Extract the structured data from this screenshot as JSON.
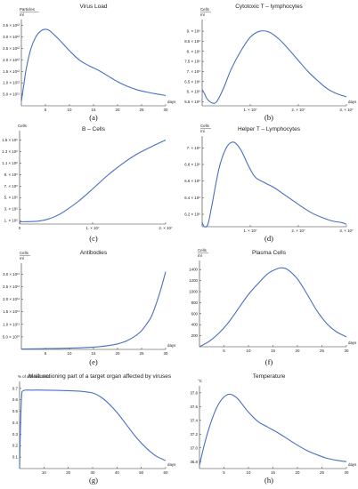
{
  "line_color": "#4a6fc0",
  "chart_data": [
    {
      "type": "line",
      "panel_label": "(a)",
      "title": "Virus Load",
      "ylabel": "Particles / ml",
      "xlabel": "days",
      "xlim": [
        0,
        30
      ],
      "ylim": [
        0,
        3600000000000.0
      ],
      "x_ticks": [
        {
          "v": 5,
          "t": "5"
        },
        {
          "v": 10,
          "t": "10"
        },
        {
          "v": 15,
          "t": "15"
        },
        {
          "v": 20,
          "t": "20"
        },
        {
          "v": 25,
          "t": "25"
        },
        {
          "v": 30,
          "t": "30"
        }
      ],
      "y_ticks": [
        {
          "v": 500000000000.0,
          "t": "5.0 × 10¹¹"
        },
        {
          "v": 1000000000000.0,
          "t": "1.0 × 10¹²"
        },
        {
          "v": 1500000000000.0,
          "t": "1.5 × 10¹²"
        },
        {
          "v": 2000000000000.0,
          "t": "2.0 × 10¹²"
        },
        {
          "v": 2500000000000.0,
          "t": "2.5 × 10¹²"
        },
        {
          "v": 3000000000000.0,
          "t": "3.0 × 10¹²"
        },
        {
          "v": 3500000000000.0,
          "t": "3.5 × 10¹²"
        }
      ],
      "series": [
        {
          "x": [
            0,
            0.5,
            1,
            2,
            3,
            4,
            5,
            6,
            8,
            10,
            12,
            14,
            16,
            18,
            20,
            22,
            24,
            26,
            28,
            30
          ],
          "y": [
            200000000000.0,
            900000000000.0,
            1600000000000.0,
            2500000000000.0,
            3000000000000.0,
            3250000000000.0,
            3330000000000.0,
            3250000000000.0,
            2850000000000.0,
            2400000000000.0,
            2000000000000.0,
            1750000000000.0,
            1550000000000.0,
            1300000000000.0,
            1050000000000.0,
            850000000000.0,
            700000000000.0,
            600000000000.0,
            520000000000.0,
            450000000000.0
          ]
        }
      ]
    },
    {
      "type": "line",
      "panel_label": "(b)",
      "title": "Cytotoxic T – lymphocytes",
      "ylabel": "Cells / ml",
      "xlabel": "days",
      "xlim": [
        0,
        30000000
      ],
      "ylim": [
        5300000.0,
        9400000.0
      ],
      "x_ticks": [
        {
          "v": 10000000,
          "t": "1. × 10⁷"
        },
        {
          "v": 20000000,
          "t": "2. × 10⁷"
        },
        {
          "v": 30000000,
          "t": "3. × 10⁷"
        }
      ],
      "y_ticks": [
        {
          "v": 5500000.0,
          "t": "5.5 × 10⁶"
        },
        {
          "v": 6000000.0,
          "t": "6. × 10⁶"
        },
        {
          "v": 6500000.0,
          "t": "6.5 × 10⁶"
        },
        {
          "v": 7000000.0,
          "t": "7. × 10⁶"
        },
        {
          "v": 7500000.0,
          "t": "7.5 × 10⁶"
        },
        {
          "v": 8000000.0,
          "t": "8. × 10⁶"
        },
        {
          "v": 8500000.0,
          "t": "8.5 × 10⁶"
        },
        {
          "v": 9000000.0,
          "t": "9. × 10⁶"
        }
      ],
      "series": [
        {
          "x": [
            0,
            500000,
            1000000,
            2000000,
            3000000,
            4500000,
            6000000,
            8000000,
            10000000,
            12000000,
            14000000,
            16000000,
            18000000,
            20000000,
            22000000,
            24000000,
            26000000,
            28000000,
            30000000
          ],
          "y": [
            6100000.0,
            5900000.0,
            5650000.0,
            5450000.0,
            5500000.0,
            6200000.0,
            7100000.0,
            8000000.0,
            8700000.0,
            9000000.0,
            8950000.0,
            8600000.0,
            8100000.0,
            7550000.0,
            7000000.0,
            6550000.0,
            6150000.0,
            5900000.0,
            5750000.0
          ]
        }
      ]
    },
    {
      "type": "line",
      "panel_label": "(c)",
      "title": "B – Cells",
      "ylabel": "Cells",
      "xlabel": "",
      "xlim": [
        0,
        20000000
      ],
      "ylim": [
        40000.0,
        1600000.0
      ],
      "x_ticks": [
        {
          "v": 0,
          "t": "0"
        },
        {
          "v": 10000000,
          "t": "1. × 10⁷"
        },
        {
          "v": 20000000,
          "t": "2. × 10⁷"
        }
      ],
      "y_ticks": [
        {
          "v": 100000.0,
          "t": "1. × 10⁵"
        },
        {
          "v": 300000.0,
          "t": "3. × 10⁵"
        },
        {
          "v": 500000.0,
          "t": "5. × 10⁵"
        },
        {
          "v": 700000.0,
          "t": "7. × 10⁵"
        },
        {
          "v": 900000.0,
          "t": "9. × 10⁵"
        },
        {
          "v": 1100000.0,
          "t": "1.1 × 10⁶"
        },
        {
          "v": 1300000.0,
          "t": "1.3 × 10⁶"
        },
        {
          "v": 1500000.0,
          "t": "1.5 × 10⁶"
        }
      ],
      "series": [
        {
          "x": [
            0,
            2000000,
            3000000,
            4000000,
            5000000,
            6000000,
            8000000,
            10000000,
            12000000,
            14000000,
            16000000,
            18000000,
            20000000
          ],
          "y": [
            80000.0,
            85000.0,
            100000.0,
            130000.0,
            180000.0,
            250000.0,
            430000.0,
            650000.0,
            880000.0,
            1080000.0,
            1250000.0,
            1380000.0,
            1500000.0
          ]
        }
      ]
    },
    {
      "type": "line",
      "panel_label": "(d)",
      "title": "Helper T – Lymphocytes",
      "ylabel": "Cells / ml",
      "xlabel": "",
      "xlim": [
        0,
        30000000
      ],
      "ylim": [
        6050000.0,
        7100000.0
      ],
      "x_ticks": [
        {
          "v": 10000000,
          "t": "1. × 10⁷"
        },
        {
          "v": 20000000,
          "t": "2. × 10⁷"
        },
        {
          "v": 30000000,
          "t": "3. × 10⁷"
        }
      ],
      "y_ticks": [
        {
          "v": 6200000.0,
          "t": "6.2 × 10⁶"
        },
        {
          "v": 6400000.0,
          "t": "6.4 × 10⁶"
        },
        {
          "v": 6600000.0,
          "t": "6.6 × 10⁶"
        },
        {
          "v": 6800000.0,
          "t": "6.8 × 10⁶"
        },
        {
          "v": 7000000.0,
          "t": "7. × 10⁶"
        }
      ],
      "series": [
        {
          "x": [
            0,
            500000,
            1200000,
            2000000,
            3500000,
            5000000,
            6500000,
            8000000,
            9500000,
            11000000,
            13000000,
            15000000,
            17000000,
            19000000,
            21000000,
            23000000,
            25000000,
            27000000,
            29000000,
            30000000
          ],
          "y": [
            6100000.0,
            6050000.0,
            6080000.0,
            6300000.0,
            6750000.0,
            7000000.0,
            7070000.0,
            6980000.0,
            6800000.0,
            6650000.0,
            6580000.0,
            6520000.0,
            6440000.0,
            6360000.0,
            6280000.0,
            6210000.0,
            6160000.0,
            6120000.0,
            6100000.0,
            6080000.0
          ]
        }
      ]
    },
    {
      "type": "line",
      "panel_label": "(e)",
      "title": "Antibodies",
      "ylabel": "Cells / ml",
      "xlabel": "days",
      "xlim": [
        0,
        30
      ],
      "ylim": [
        0,
        330000000000.0
      ],
      "x_ticks": [
        {
          "v": 5,
          "t": "5"
        },
        {
          "v": 10,
          "t": "10"
        },
        {
          "v": 15,
          "t": "15"
        },
        {
          "v": 20,
          "t": "20"
        },
        {
          "v": 25,
          "t": "25"
        },
        {
          "v": 30,
          "t": "30"
        }
      ],
      "y_ticks": [
        {
          "v": 50000000000.0,
          "t": "5.0 × 10¹⁰"
        },
        {
          "v": 100000000000.0,
          "t": "1.0 × 10¹¹"
        },
        {
          "v": 150000000000.0,
          "t": "1.5 × 10¹¹"
        },
        {
          "v": 200000000000.0,
          "t": "2.0 × 10¹¹"
        },
        {
          "v": 250000000000.0,
          "t": "2.5 × 10¹¹"
        },
        {
          "v": 300000000000.0,
          "t": "3.0 × 10¹¹"
        }
      ],
      "series": [
        {
          "x": [
            0,
            5,
            10,
            15,
            18,
            20,
            22,
            24,
            25,
            26,
            27,
            28,
            29,
            30
          ],
          "y": [
            1500000000.0,
            3000000000.0,
            5000000000.0,
            9000000000.0,
            15000000000.0,
            22000000000.0,
            35000000000.0,
            58000000000.0,
            75000000000.0,
            100000000000.0,
            130000000000.0,
            180000000000.0,
            240000000000.0,
            310000000000.0
          ]
        }
      ]
    },
    {
      "type": "line",
      "panel_label": "(f)",
      "title": "Plasma Cells",
      "ylabel": "Cells / ml",
      "xlabel": "days",
      "xlim": [
        0,
        30
      ],
      "ylim": [
        0,
        1500
      ],
      "x_ticks": [
        {
          "v": 5,
          "t": "5"
        },
        {
          "v": 10,
          "t": "10"
        },
        {
          "v": 15,
          "t": "15"
        },
        {
          "v": 20,
          "t": "20"
        },
        {
          "v": 25,
          "t": "25"
        },
        {
          "v": 30,
          "t": "30"
        }
      ],
      "y_ticks": [
        {
          "v": 200,
          "t": "200"
        },
        {
          "v": 400,
          "t": "400"
        },
        {
          "v": 600,
          "t": "600"
        },
        {
          "v": 800,
          "t": "800"
        },
        {
          "v": 1000,
          "t": "1000"
        },
        {
          "v": 1200,
          "t": "1200"
        },
        {
          "v": 1400,
          "t": "1400"
        }
      ],
      "series": [
        {
          "x": [
            0,
            2,
            4,
            6,
            8,
            10,
            12,
            14,
            16,
            17,
            18,
            20,
            22,
            24,
            26,
            28,
            30
          ],
          "y": [
            0,
            100,
            250,
            450,
            700,
            950,
            1150,
            1330,
            1420,
            1430,
            1400,
            1230,
            950,
            650,
            420,
            270,
            180
          ]
        }
      ]
    },
    {
      "type": "line",
      "panel_label": "(g)",
      "title": "Malfunctioning part of a target organ affected by viruses",
      "ylabel": "% of affected cells",
      "xlabel": "days",
      "xlim": [
        0,
        60
      ],
      "ylim": [
        0,
        0.73
      ],
      "x_ticks": [
        {
          "v": 10,
          "t": "10"
        },
        {
          "v": 20,
          "t": "20"
        },
        {
          "v": 30,
          "t": "30"
        },
        {
          "v": 40,
          "t": "40"
        },
        {
          "v": 50,
          "t": "50"
        },
        {
          "v": 60,
          "t": "60"
        }
      ],
      "y_ticks": [
        {
          "v": 0.1,
          "t": "0.1"
        },
        {
          "v": 0.2,
          "t": "0.2"
        },
        {
          "v": 0.3,
          "t": "0.3"
        },
        {
          "v": 0.4,
          "t": "0.4"
        },
        {
          "v": 0.5,
          "t": "0.5"
        },
        {
          "v": 0.6,
          "t": "0.6"
        },
        {
          "v": 0.7,
          "t": "0.7"
        }
      ],
      "series": [
        {
          "x": [
            0,
            0.3,
            0.8,
            1.5,
            5,
            10,
            20,
            25,
            30,
            33,
            36,
            40,
            44,
            48,
            52,
            56,
            60
          ],
          "y": [
            0,
            0.3,
            0.62,
            0.68,
            0.685,
            0.685,
            0.68,
            0.675,
            0.66,
            0.63,
            0.58,
            0.49,
            0.38,
            0.27,
            0.18,
            0.11,
            0.07
          ]
        }
      ]
    },
    {
      "type": "line",
      "panel_label": "(h)",
      "title": "Temperature",
      "ylabel": "°C",
      "xlabel": "days",
      "xlim": [
        0,
        30
      ],
      "ylim": [
        36.7,
        37.85
      ],
      "x_ticks": [
        {
          "v": 5,
          "t": "5"
        },
        {
          "v": 10,
          "t": "10"
        },
        {
          "v": 15,
          "t": "15"
        },
        {
          "v": 20,
          "t": "20"
        },
        {
          "v": 25,
          "t": "25"
        },
        {
          "v": 30,
          "t": "30"
        }
      ],
      "y_ticks": [
        {
          "v": 36.8,
          "t": "36.8"
        },
        {
          "v": 37.0,
          "t": "37.0"
        },
        {
          "v": 37.2,
          "t": "37.2"
        },
        {
          "v": 37.4,
          "t": "37.4"
        },
        {
          "v": 37.6,
          "t": "37.6"
        },
        {
          "v": 37.8,
          "t": "37.8"
        }
      ],
      "series": [
        {
          "x": [
            0,
            1,
            2,
            3,
            4,
            5,
            6,
            7,
            8,
            10,
            12,
            14,
            16,
            18,
            20,
            22,
            24,
            26,
            28,
            30
          ],
          "y": [
            36.75,
            37.05,
            37.3,
            37.5,
            37.65,
            37.74,
            37.78,
            37.76,
            37.7,
            37.52,
            37.38,
            37.3,
            37.22,
            37.13,
            37.04,
            36.96,
            36.9,
            36.85,
            36.82,
            36.8
          ]
        }
      ]
    }
  ]
}
